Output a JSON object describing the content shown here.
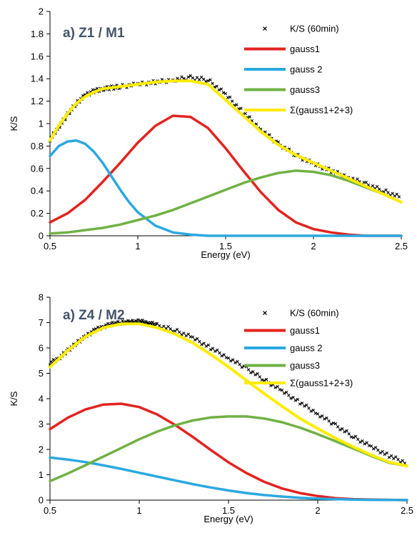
{
  "chart_data": [
    {
      "type": "line",
      "panel_label": "a) Z1 / M1",
      "xlabel": "Energy (eV)",
      "ylabel": "K/S",
      "xlim": [
        0.5,
        2.5
      ],
      "ylim": [
        0,
        2
      ],
      "xticks": [
        "0.5",
        "1",
        "1.5",
        "2",
        "2.5"
      ],
      "yticks": [
        "0",
        "0.2",
        "0.4",
        "0.6",
        "0.8",
        "1",
        "1.2",
        "1.4",
        "1.6",
        "1.8",
        "2"
      ],
      "legend_position": "top-right",
      "series": [
        {
          "name": "K/S (60min)",
          "kind": "scatter",
          "color": "#000000",
          "x": [
            0.5,
            0.55,
            0.6,
            0.65,
            0.7,
            0.75,
            0.8,
            0.85,
            0.9,
            1.0,
            1.1,
            1.2,
            1.3,
            1.4,
            1.5,
            1.6,
            1.7,
            1.8,
            1.9,
            2.0,
            2.1,
            2.2,
            2.3,
            2.4,
            2.5
          ],
          "y": [
            0.86,
            0.97,
            1.08,
            1.18,
            1.25,
            1.29,
            1.31,
            1.32,
            1.33,
            1.35,
            1.37,
            1.39,
            1.41,
            1.39,
            1.26,
            1.1,
            0.95,
            0.82,
            0.72,
            0.64,
            0.58,
            0.52,
            0.46,
            0.4,
            0.34
          ]
        },
        {
          "name": "gauss1",
          "kind": "line",
          "color": "#e3231f",
          "x": [
            0.5,
            0.6,
            0.7,
            0.8,
            0.9,
            1.0,
            1.1,
            1.2,
            1.3,
            1.4,
            1.5,
            1.6,
            1.7,
            1.8,
            1.9,
            2.0,
            2.1,
            2.2,
            2.3,
            2.4,
            2.5
          ],
          "y": [
            0.12,
            0.2,
            0.32,
            0.48,
            0.65,
            0.83,
            0.98,
            1.07,
            1.06,
            0.96,
            0.78,
            0.58,
            0.39,
            0.23,
            0.12,
            0.06,
            0.03,
            0.01,
            0.0,
            0.0,
            0.0
          ]
        },
        {
          "name": "gauss 2",
          "kind": "line",
          "color": "#2aa8e0",
          "x": [
            0.5,
            0.55,
            0.6,
            0.65,
            0.7,
            0.75,
            0.8,
            0.85,
            0.9,
            0.95,
            1.0,
            1.1,
            1.2,
            1.3,
            1.4,
            1.5,
            1.7,
            2.0,
            2.5
          ],
          "y": [
            0.71,
            0.8,
            0.84,
            0.85,
            0.82,
            0.75,
            0.65,
            0.53,
            0.41,
            0.3,
            0.21,
            0.09,
            0.03,
            0.01,
            0.0,
            0.0,
            0.0,
            0.0,
            0.0
          ]
        },
        {
          "name": "gauss3",
          "kind": "line",
          "color": "#70b144",
          "x": [
            0.5,
            0.6,
            0.7,
            0.8,
            0.9,
            1.0,
            1.1,
            1.2,
            1.3,
            1.4,
            1.5,
            1.6,
            1.7,
            1.8,
            1.9,
            2.0,
            2.1,
            2.2,
            2.3,
            2.4,
            2.5
          ],
          "y": [
            0.02,
            0.03,
            0.05,
            0.07,
            0.1,
            0.14,
            0.18,
            0.23,
            0.29,
            0.35,
            0.41,
            0.47,
            0.52,
            0.56,
            0.58,
            0.57,
            0.54,
            0.49,
            0.43,
            0.37,
            0.3
          ]
        },
        {
          "name": "Σ(gauss1+2+3)",
          "kind": "line",
          "color": "#ffec00",
          "x": [
            0.5,
            0.55,
            0.6,
            0.65,
            0.7,
            0.75,
            0.8,
            0.9,
            1.0,
            1.1,
            1.2,
            1.3,
            1.4,
            1.5,
            1.6,
            1.7,
            1.8,
            1.9,
            2.0,
            2.1,
            2.2,
            2.3,
            2.4,
            2.5
          ],
          "y": [
            0.85,
            0.98,
            1.09,
            1.18,
            1.24,
            1.28,
            1.31,
            1.33,
            1.35,
            1.37,
            1.38,
            1.38,
            1.35,
            1.21,
            1.07,
            0.93,
            0.81,
            0.72,
            0.65,
            0.58,
            0.51,
            0.44,
            0.37,
            0.3
          ]
        }
      ]
    },
    {
      "type": "line",
      "panel_label": "a) Z4 / M2",
      "xlabel": "Energy (eV)",
      "ylabel": "K/S",
      "xlim": [
        0.5,
        2.5
      ],
      "ylim": [
        0,
        8
      ],
      "xticks": [
        "0.5",
        "1",
        "1.5",
        "2",
        "2.5"
      ],
      "yticks": [
        "0",
        "1",
        "2",
        "3",
        "4",
        "5",
        "6",
        "7",
        "8"
      ],
      "legend_position": "top-right",
      "series": [
        {
          "name": "K/S (60min)",
          "kind": "scatter",
          "color": "#000000",
          "x": [
            0.5,
            0.55,
            0.6,
            0.65,
            0.7,
            0.75,
            0.8,
            0.85,
            0.9,
            0.95,
            1.0,
            1.05,
            1.1,
            1.2,
            1.3,
            1.4,
            1.5,
            1.6,
            1.7,
            1.8,
            1.9,
            2.0,
            2.1,
            2.2,
            2.3,
            2.4,
            2.5
          ],
          "y": [
            5.4,
            5.6,
            5.9,
            6.2,
            6.45,
            6.7,
            6.85,
            6.95,
            7.0,
            7.02,
            7.05,
            7.0,
            6.9,
            6.7,
            6.4,
            6.0,
            5.6,
            5.2,
            4.75,
            4.3,
            3.85,
            3.4,
            2.95,
            2.5,
            2.1,
            1.75,
            1.45
          ]
        },
        {
          "name": "gauss1",
          "kind": "line",
          "color": "#e3231f",
          "x": [
            0.5,
            0.6,
            0.7,
            0.8,
            0.9,
            1.0,
            1.1,
            1.2,
            1.3,
            1.4,
            1.5,
            1.6,
            1.7,
            1.8,
            1.9,
            2.0,
            2.1,
            2.2,
            2.3,
            2.4,
            2.5
          ],
          "y": [
            2.8,
            3.25,
            3.58,
            3.77,
            3.8,
            3.67,
            3.38,
            2.97,
            2.49,
            1.98,
            1.49,
            1.07,
            0.72,
            0.46,
            0.28,
            0.16,
            0.08,
            0.04,
            0.02,
            0.01,
            0.0
          ]
        },
        {
          "name": "gauss 2",
          "kind": "line",
          "color": "#2aa8e0",
          "x": [
            0.5,
            0.6,
            0.7,
            0.8,
            0.9,
            1.0,
            1.1,
            1.2,
            1.3,
            1.4,
            1.5,
            1.6,
            1.7,
            1.8,
            1.9,
            2.0,
            2.1,
            2.2,
            2.3,
            2.4,
            2.5
          ],
          "y": [
            1.68,
            1.6,
            1.5,
            1.37,
            1.23,
            1.08,
            0.93,
            0.78,
            0.63,
            0.5,
            0.38,
            0.28,
            0.2,
            0.14,
            0.09,
            0.06,
            0.04,
            0.02,
            0.01,
            0.01,
            0.0
          ]
        },
        {
          "name": "gauss3",
          "kind": "line",
          "color": "#70b144",
          "x": [
            0.5,
            0.6,
            0.7,
            0.8,
            0.9,
            1.0,
            1.1,
            1.2,
            1.3,
            1.4,
            1.5,
            1.6,
            1.7,
            1.8,
            1.9,
            2.0,
            2.1,
            2.2,
            2.3,
            2.4,
            2.5
          ],
          "y": [
            0.75,
            1.05,
            1.38,
            1.72,
            2.06,
            2.4,
            2.7,
            2.95,
            3.14,
            3.26,
            3.3,
            3.3,
            3.22,
            3.07,
            2.86,
            2.6,
            2.32,
            2.03,
            1.74,
            1.47,
            1.35
          ]
        },
        {
          "name": "Σ(gauss1+2+3)",
          "kind": "line",
          "color": "#ffec00",
          "x": [
            0.5,
            0.6,
            0.7,
            0.8,
            0.9,
            1.0,
            1.1,
            1.2,
            1.3,
            1.4,
            1.5,
            1.6,
            1.7,
            1.8,
            1.9,
            2.0,
            2.1,
            2.2,
            2.3,
            2.4,
            2.5
          ],
          "y": [
            5.25,
            5.9,
            6.45,
            6.8,
            6.95,
            6.95,
            6.8,
            6.55,
            6.2,
            5.75,
            5.25,
            4.72,
            4.2,
            3.7,
            3.22,
            2.82,
            2.44,
            2.1,
            1.78,
            1.5,
            1.35
          ]
        }
      ]
    }
  ]
}
